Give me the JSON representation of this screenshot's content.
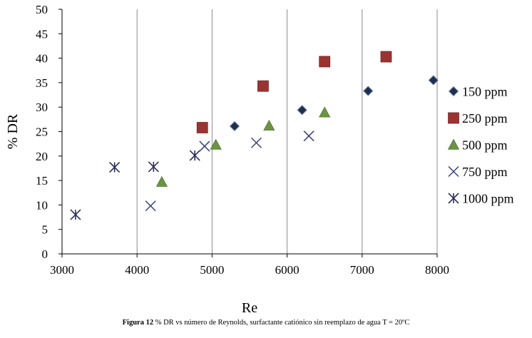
{
  "chart_data": {
    "type": "scatter",
    "xlabel": "Re",
    "ylabel": "% DR",
    "xlim": [
      3000,
      8000
    ],
    "ylim": [
      0,
      50
    ],
    "x_ticks": [
      "3000",
      "4000",
      "5000",
      "6000",
      "7000",
      "8000"
    ],
    "y_ticks": [
      "0",
      "5",
      "10",
      "15",
      "20",
      "25",
      "30",
      "35",
      "40",
      "45",
      "50"
    ],
    "grid": "vertical",
    "legend_position": "right",
    "series": [
      {
        "name": "150 ppm",
        "marker": "diamond",
        "color": "#1f2f4f",
        "points": [
          [
            5300,
            26.1
          ],
          [
            6200,
            29.4
          ],
          [
            7080,
            33.3
          ],
          [
            7950,
            35.5
          ]
        ]
      },
      {
        "name": "250 ppm",
        "marker": "square",
        "color": "#9b3431",
        "points": [
          [
            4870,
            25.8
          ],
          [
            5680,
            34.3
          ],
          [
            6500,
            39.3
          ],
          [
            7320,
            40.3
          ]
        ]
      },
      {
        "name": "500 ppm",
        "marker": "triangle",
        "color": "#6a9442",
        "points": [
          [
            4330,
            14.7
          ],
          [
            5050,
            22.3
          ],
          [
            5760,
            26.2
          ],
          [
            6500,
            28.9
          ]
        ]
      },
      {
        "name": "750 ppm",
        "marker": "x",
        "color": "#3a3f7a",
        "points": [
          [
            4180,
            9.8
          ],
          [
            4900,
            22.0
          ],
          [
            5590,
            22.7
          ],
          [
            6290,
            24.1
          ]
        ]
      },
      {
        "name": "1000 ppm",
        "marker": "asterisk",
        "color": "#2a2f5a",
        "points": [
          [
            3180,
            8.0
          ],
          [
            3700,
            17.7
          ],
          [
            4220,
            17.8
          ],
          [
            4770,
            20.1
          ]
        ]
      }
    ]
  },
  "caption": {
    "bold": "Figura 12",
    "text": " % DR vs número de Reynolds, surfactante catiónico sin reemplazo de agua T = 20ºC"
  }
}
